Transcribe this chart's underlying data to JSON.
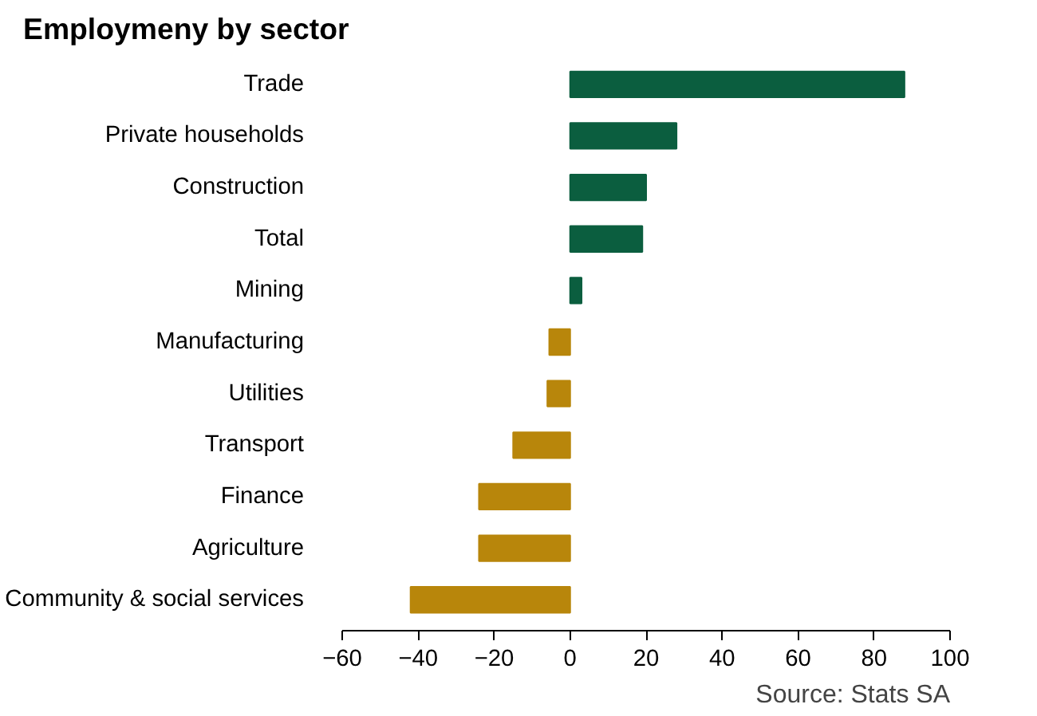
{
  "chart_data": {
    "type": "bar",
    "orientation": "horizontal",
    "title": "Employmeny by sector",
    "categories": [
      "Trade",
      "Private households",
      "Construction",
      "Total",
      "Mining",
      "Manufacturing",
      "Utilities",
      "Transport",
      "Finance",
      "Agriculture",
      "Community & social services"
    ],
    "values": [
      88,
      28,
      20,
      19,
      3,
      -5.5,
      -6,
      -15,
      -24,
      -24,
      -42
    ],
    "colors": [
      "#0b5e3f",
      "#0b5e3f",
      "#0b5e3f",
      "#0b5e3f",
      "#0b5e3f",
      "#b8860b",
      "#b8860b",
      "#b8860b",
      "#b8860b",
      "#b8860b",
      "#b8860b"
    ],
    "xlim": [
      -60,
      100
    ],
    "xticks": [
      -60,
      -40,
      -20,
      0,
      20,
      40,
      60,
      80,
      100
    ],
    "grid": false,
    "annotations": [
      "Source: Stats SA"
    ]
  }
}
